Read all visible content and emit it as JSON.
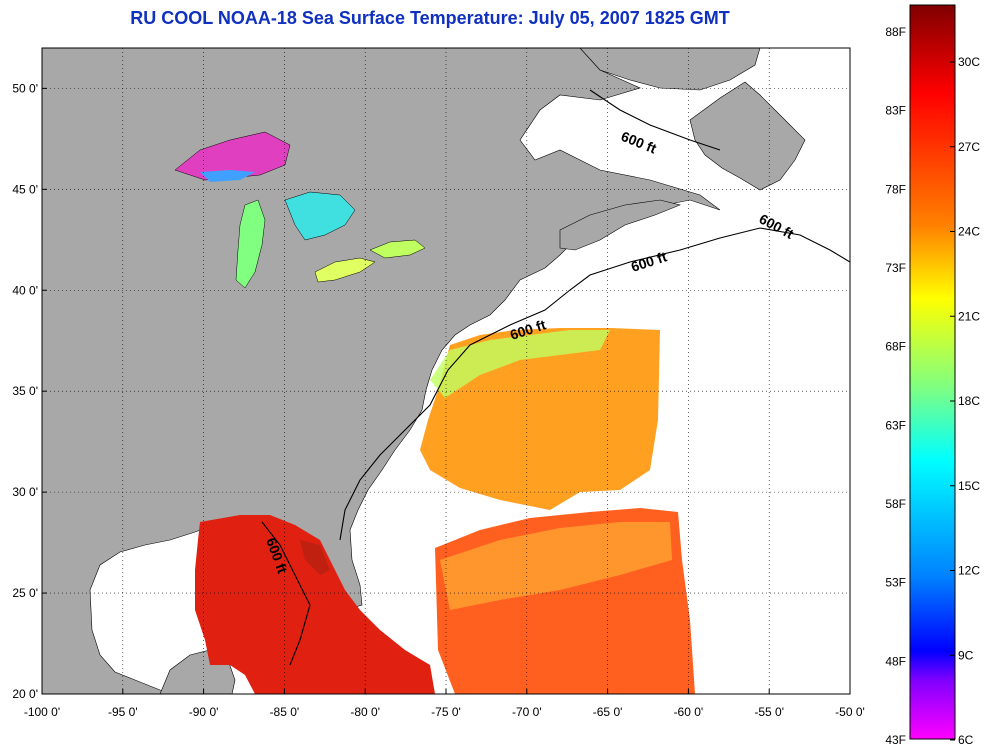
{
  "title": "RU COOL  NOAA-18  Sea Surface Temperature:  July 05, 2007 1825 GMT",
  "map": {
    "lon_range": [
      -100,
      -50
    ],
    "lat_range": [
      20,
      52
    ],
    "lon_ticks": [
      "-100 0'",
      "-95 0'",
      "-90 0'",
      "-85 0'",
      "-80 0'",
      "-75 0'",
      "-70 0'",
      "-65 0'",
      "-60 0'",
      "-55 0'",
      "-50 0'"
    ],
    "lat_ticks": [
      "50 0'",
      "45 0'",
      "40 0'",
      "35 0'",
      "30 0'",
      "25 0'",
      "20 0'"
    ],
    "contour_label": "600 ft",
    "land_color": "#a8a8a8",
    "no_data_color": "#ffffff"
  },
  "colorbar": {
    "fahrenheit_labels": [
      "88F",
      "83F",
      "78F",
      "73F",
      "68F",
      "63F",
      "58F",
      "53F",
      "48F",
      "43F"
    ],
    "celsius_labels": [
      "30C",
      "27C",
      "24C",
      "21C",
      "18C",
      "15C",
      "12C",
      "9C",
      "6C"
    ],
    "colors_top_to_bottom": [
      "#800000",
      "#ff0000",
      "#ff8000",
      "#ffff00",
      "#80ff80",
      "#00ffff",
      "#0080ff",
      "#0000ff",
      "#ff00ff"
    ]
  }
}
